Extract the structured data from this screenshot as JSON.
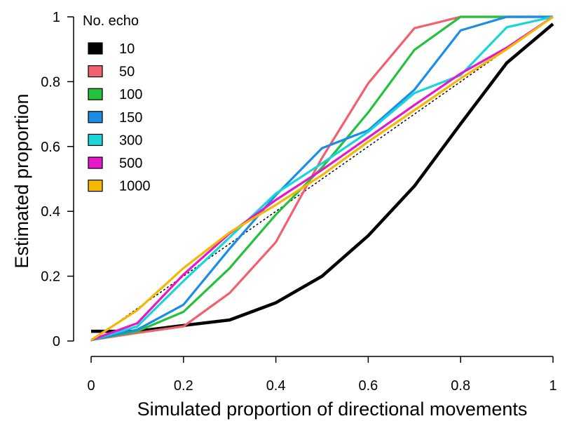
{
  "chart_data": {
    "type": "line",
    "xlabel": "Simulated proportion of directional movements",
    "ylabel": "Estimated proportion",
    "xlim": [
      0,
      1
    ],
    "ylim": [
      0,
      1
    ],
    "xticks": [
      0,
      0.2,
      0.4,
      0.6,
      0.8,
      1
    ],
    "xtick_labels": [
      "0",
      "0.2",
      "0.4",
      "0.6",
      "0.8",
      "1"
    ],
    "yticks": [
      0,
      0.2,
      0.4,
      0.6,
      0.8,
      1
    ],
    "ytick_labels": [
      "0",
      "0.2",
      "0.4",
      "0.6",
      "0.8",
      "1"
    ],
    "grid": false,
    "legend": {
      "title": "No. echo",
      "placement": "top-left"
    },
    "x": [
      0,
      0.1,
      0.2,
      0.3,
      0.4,
      0.5,
      0.6,
      0.7,
      0.8,
      0.9,
      1
    ],
    "reference_line": {
      "style": "dotted",
      "color": "#000000",
      "x": [
        0,
        1
      ],
      "y": [
        0,
        1
      ]
    },
    "series": [
      {
        "name": "10",
        "color": "#000000",
        "values": [
          0.03,
          0.03,
          0.048,
          0.065,
          0.118,
          0.2,
          0.325,
          0.478,
          0.67,
          0.858,
          0.978
        ]
      },
      {
        "name": "50",
        "color": "#F25F6E",
        "values": [
          0.003,
          0.025,
          0.045,
          0.148,
          0.305,
          0.565,
          0.795,
          0.965,
          1.0,
          1.0,
          1.0
        ]
      },
      {
        "name": "100",
        "color": "#22C23C",
        "values": [
          0.003,
          0.03,
          0.09,
          0.225,
          0.39,
          0.535,
          0.705,
          0.898,
          1.0,
          1.0,
          1.0
        ]
      },
      {
        "name": "150",
        "color": "#1B8DE8",
        "values": [
          0.003,
          0.035,
          0.112,
          0.285,
          0.45,
          0.595,
          0.65,
          0.775,
          0.958,
          1.0,
          1.0
        ]
      },
      {
        "name": "300",
        "color": "#18D5DA",
        "values": [
          0.003,
          0.045,
          0.185,
          0.32,
          0.455,
          0.548,
          0.645,
          0.765,
          0.82,
          0.968,
          1.0
        ]
      },
      {
        "name": "500",
        "color": "#E617C8",
        "values": [
          0.003,
          0.055,
          0.205,
          0.332,
          0.435,
          0.528,
          0.628,
          0.728,
          0.825,
          0.905,
          1.0
        ]
      },
      {
        "name": "1000",
        "color": "#F5B800",
        "values": [
          0.003,
          0.095,
          0.225,
          0.335,
          0.42,
          0.512,
          0.615,
          0.712,
          0.81,
          0.9,
          1.0
        ]
      }
    ]
  }
}
